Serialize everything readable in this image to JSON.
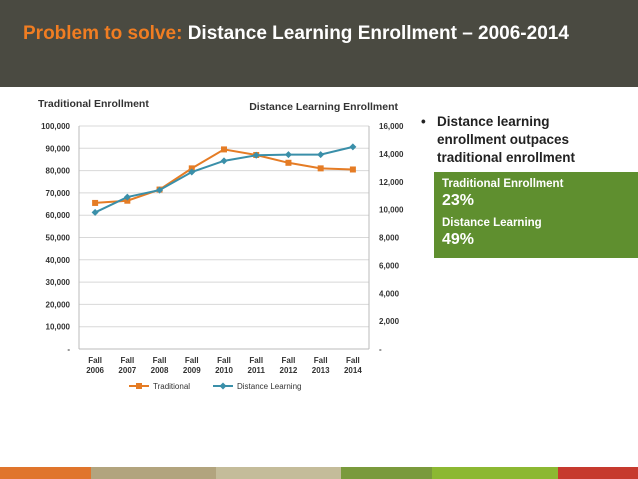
{
  "slide": {
    "title_prefix": "Problem to solve:",
    "title_rest": " Distance Learning Enrollment – 2006-2014",
    "bullet_marker": "•",
    "bullet": "Distance learning enrollment outpaces traditional enrollment",
    "stats": [
      {
        "label": "Traditional Enrollment",
        "value": "23%"
      },
      {
        "label": "Distance Learning",
        "value": "49%"
      }
    ],
    "colors": {
      "header_bg": "#4a4a41",
      "accent": "#f07d22",
      "stat_box": "#5f8f2f",
      "footer": [
        "#e0752c",
        "#b2a47e",
        "#c4bc9a",
        "#7a9a3c",
        "#8cb832",
        "#c63a2e"
      ]
    }
  },
  "chart_data": {
    "type": "line",
    "title_left": "Traditional Enrollment",
    "title_right": "Distance Learning Enrollment",
    "categories": [
      "Fall 2006",
      "Fall 2007",
      "Fall 2008",
      "Fall 2009",
      "Fall 2010",
      "Fall 2011",
      "Fall 2012",
      "Fall 2013",
      "Fall 2014"
    ],
    "left_axis": {
      "ylim": [
        0,
        100000
      ],
      "ticks": [
        "-",
        "10,000",
        "20,000",
        "30,000",
        "40,000",
        "50,000",
        "60,000",
        "70,000",
        "80,000",
        "90,000",
        "100,000"
      ]
    },
    "right_axis": {
      "ylim": [
        0,
        16000
      ],
      "ticks": [
        "-",
        "2,000",
        "4,000",
        "6,000",
        "8,000",
        "10,000",
        "12,000",
        "14,000",
        "16,000"
      ]
    },
    "series": [
      {
        "name": "Traditional",
        "axis": "left",
        "color": "#e57c25",
        "marker": "square",
        "values": [
          65500,
          66500,
          71500,
          81000,
          89500,
          87000,
          83500,
          81000,
          80500
        ]
      },
      {
        "name": "Distance Learning",
        "axis": "right",
        "color": "#3a8fa9",
        "marker": "diamond",
        "values": [
          9800,
          10900,
          11400,
          12700,
          13500,
          13900,
          13950,
          13950,
          14500
        ]
      }
    ],
    "grid": "horizontal",
    "legend_position": "bottom"
  }
}
